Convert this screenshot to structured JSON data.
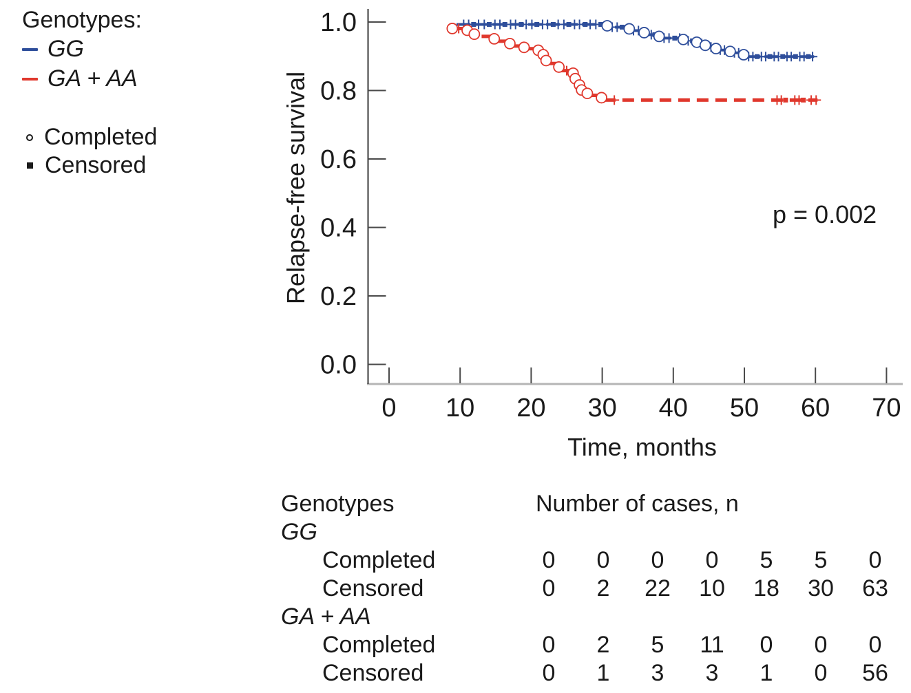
{
  "legend": {
    "title": "Genotypes:",
    "series_labels": [
      "GG",
      "GA + AA"
    ],
    "marker_items": [
      {
        "marker": "circle",
        "label": "Completed"
      },
      {
        "marker": "square",
        "label": "Censored"
      }
    ]
  },
  "chart_data": {
    "type": "line",
    "subtype": "kaplan-meier-step",
    "title": "",
    "xlabel": "Time, months",
    "ylabel": "Relapse-free survival",
    "annotation_pvalue": "p = 0.002",
    "xlim": [
      0,
      70
    ],
    "ylim": [
      0.0,
      1.0
    ],
    "grid": false,
    "xticks": [
      {
        "v": 0,
        "label": "0"
      },
      {
        "v": 10,
        "label": "10"
      },
      {
        "v": 20,
        "label": "20"
      },
      {
        "v": 30,
        "label": "30"
      },
      {
        "v": 40,
        "label": "40"
      },
      {
        "v": 50,
        "label": "50"
      },
      {
        "v": 60,
        "label": "60"
      },
      {
        "v": 70,
        "label": "70"
      }
    ],
    "yticks": [
      {
        "v": 0.0,
        "label": "0.0"
      },
      {
        "v": 0.2,
        "label": "0.2"
      },
      {
        "v": 0.4,
        "label": "0.4"
      },
      {
        "v": 0.6,
        "label": "0.6"
      },
      {
        "v": 0.8,
        "label": "0.8"
      },
      {
        "v": 1.0,
        "label": "1.0"
      }
    ],
    "series": [
      {
        "name": "GG",
        "color": "#2e4e9b",
        "underline_color": "#b6c0dc",
        "dash": [
          20,
          6
        ],
        "line_width": 4,
        "steps": [
          [
            9.5,
            0.993
          ],
          [
            30.7,
            0.985
          ],
          [
            33.8,
            0.975
          ],
          [
            35.9,
            0.963
          ],
          [
            38.0,
            0.953
          ],
          [
            41.4,
            0.945
          ],
          [
            43.3,
            0.937
          ],
          [
            44.5,
            0.927
          ],
          [
            46.0,
            0.918
          ],
          [
            48.0,
            0.91
          ],
          [
            49.9,
            0.899
          ],
          [
            60.0,
            0.899
          ]
        ],
        "events": [
          30.7,
          33.8,
          35.9,
          38.0,
          41.4,
          43.3,
          44.5,
          46.0,
          48.0,
          49.9
        ],
        "censors": [
          [
            10.5,
            0.993,
            "p"
          ],
          [
            11.2,
            0.993,
            "p"
          ],
          [
            11.9,
            0.993,
            "s"
          ],
          [
            12.6,
            0.993,
            "p"
          ],
          [
            13.4,
            0.993,
            "p"
          ],
          [
            14.1,
            0.993,
            "s"
          ],
          [
            14.9,
            0.993,
            "p"
          ],
          [
            15.6,
            0.993,
            "p"
          ],
          [
            16.3,
            0.993,
            "s"
          ],
          [
            17.1,
            0.993,
            "p"
          ],
          [
            17.8,
            0.993,
            "p"
          ],
          [
            18.6,
            0.993,
            "s"
          ],
          [
            19.3,
            0.993,
            "p"
          ],
          [
            20.1,
            0.993,
            "p"
          ],
          [
            20.8,
            0.993,
            "s"
          ],
          [
            21.6,
            0.993,
            "p"
          ],
          [
            22.3,
            0.993,
            "p"
          ],
          [
            23.1,
            0.993,
            "s"
          ],
          [
            23.8,
            0.993,
            "p"
          ],
          [
            24.6,
            0.993,
            "p"
          ],
          [
            25.3,
            0.993,
            "s"
          ],
          [
            26.1,
            0.993,
            "p"
          ],
          [
            26.8,
            0.993,
            "p"
          ],
          [
            27.6,
            0.993,
            "s"
          ],
          [
            28.3,
            0.993,
            "p"
          ],
          [
            29.1,
            0.993,
            "p"
          ],
          [
            29.8,
            0.993,
            "s"
          ],
          [
            31.4,
            0.985,
            "p"
          ],
          [
            32.1,
            0.985,
            "p"
          ],
          [
            32.8,
            0.985,
            "s"
          ],
          [
            34.4,
            0.975,
            "p"
          ],
          [
            35.1,
            0.975,
            "p"
          ],
          [
            36.9,
            0.963,
            "p"
          ],
          [
            37.4,
            0.963,
            "s"
          ],
          [
            38.7,
            0.953,
            "p"
          ],
          [
            39.4,
            0.953,
            "p"
          ],
          [
            40.2,
            0.953,
            "s"
          ],
          [
            40.9,
            0.953,
            "p"
          ],
          [
            42.1,
            0.945,
            "p"
          ],
          [
            42.7,
            0.945,
            "s"
          ],
          [
            44.0,
            0.937,
            "p"
          ],
          [
            45.3,
            0.927,
            "p"
          ],
          [
            45.8,
            0.927,
            "s"
          ],
          [
            46.6,
            0.918,
            "p"
          ],
          [
            47.2,
            0.918,
            "p"
          ],
          [
            47.7,
            0.918,
            "s"
          ],
          [
            48.6,
            0.91,
            "p"
          ],
          [
            49.2,
            0.91,
            "p"
          ],
          [
            50.6,
            0.899,
            "p"
          ],
          [
            51.2,
            0.899,
            "p"
          ],
          [
            51.8,
            0.899,
            "s"
          ],
          [
            52.4,
            0.899,
            "p"
          ],
          [
            53.0,
            0.899,
            "p"
          ],
          [
            53.6,
            0.899,
            "s"
          ],
          [
            54.2,
            0.899,
            "p"
          ],
          [
            54.8,
            0.899,
            "p"
          ],
          [
            55.4,
            0.899,
            "s"
          ],
          [
            56.0,
            0.899,
            "p"
          ],
          [
            56.6,
            0.899,
            "p"
          ],
          [
            57.2,
            0.899,
            "s"
          ],
          [
            57.8,
            0.899,
            "p"
          ],
          [
            58.4,
            0.899,
            "p"
          ],
          [
            59.0,
            0.899,
            "s"
          ],
          [
            59.6,
            0.899,
            "p"
          ]
        ]
      },
      {
        "name": "GA + AA",
        "color": "#e0382d",
        "underline_color": "",
        "dash": [
          17,
          10
        ],
        "line_width": 5,
        "steps": [
          [
            8.9,
            0.981
          ],
          [
            11.0,
            0.971
          ],
          [
            12.0,
            0.958
          ],
          [
            14.8,
            0.944
          ],
          [
            17.0,
            0.93
          ],
          [
            19.0,
            0.922
          ],
          [
            21.0,
            0.913
          ],
          [
            21.7,
            0.896
          ],
          [
            22.1,
            0.879
          ],
          [
            23.9,
            0.858
          ],
          [
            25.9,
            0.843
          ],
          [
            26.2,
            0.826
          ],
          [
            26.8,
            0.806
          ],
          [
            27.1,
            0.797
          ],
          [
            27.9,
            0.786
          ],
          [
            29.9,
            0.772
          ],
          [
            60.3,
            0.772
          ]
        ],
        "events": [
          8.9,
          11.0,
          12.0,
          14.8,
          17.0,
          19.0,
          21.0,
          21.7,
          22.1,
          23.9,
          25.9,
          26.2,
          26.8,
          27.1,
          27.9,
          29.9
        ],
        "censors": [
          [
            9.8,
            0.981,
            "p"
          ],
          [
            25.0,
            0.858,
            "p"
          ],
          [
            31.7,
            0.772,
            "p"
          ],
          [
            54.6,
            0.772,
            "p"
          ],
          [
            55.2,
            0.772,
            "p"
          ],
          [
            55.8,
            0.772,
            "s"
          ],
          [
            57.1,
            0.772,
            "p"
          ],
          [
            57.7,
            0.772,
            "p"
          ],
          [
            58.3,
            0.772,
            "s"
          ],
          [
            59.4,
            0.772,
            "p"
          ],
          [
            60.1,
            0.772,
            "p"
          ]
        ]
      }
    ]
  },
  "table": {
    "header_left": "Genotypes",
    "header_right": "Number of cases, n",
    "rows": [
      {
        "label": "GG",
        "italic": true,
        "indent": false,
        "values": []
      },
      {
        "label": "Completed",
        "italic": false,
        "indent": true,
        "values": [
          "0",
          "0",
          "0",
          "0",
          "5",
          "5",
          "0"
        ]
      },
      {
        "label": "Censored",
        "italic": false,
        "indent": true,
        "values": [
          "0",
          "2",
          "22",
          "10",
          "18",
          "30",
          "63"
        ]
      },
      {
        "label": "GA + AA",
        "italic": true,
        "indent": false,
        "values": []
      },
      {
        "label": "Completed",
        "italic": false,
        "indent": true,
        "values": [
          "0",
          "2",
          "5",
          "11",
          "0",
          "0",
          "0"
        ]
      },
      {
        "label": "Censored",
        "italic": false,
        "indent": true,
        "values": [
          "0",
          "1",
          "3",
          "3",
          "1",
          "0",
          "56"
        ]
      }
    ]
  }
}
